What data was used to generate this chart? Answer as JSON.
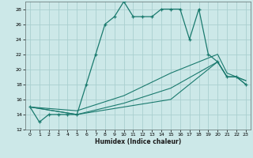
{
  "title": "",
  "xlabel": "Humidex (Indice chaleur)",
  "xlim": [
    -0.5,
    23.5
  ],
  "ylim": [
    12,
    29
  ],
  "yticks": [
    12,
    14,
    16,
    18,
    20,
    22,
    24,
    26,
    28
  ],
  "xticks": [
    0,
    1,
    2,
    3,
    4,
    5,
    6,
    7,
    8,
    9,
    10,
    11,
    12,
    13,
    14,
    15,
    16,
    17,
    18,
    19,
    20,
    21,
    22,
    23
  ],
  "background_color": "#cce8e8",
  "grid_color": "#aacfcf",
  "line_color": "#1a7a6e",
  "line1_x": [
    0,
    1,
    2,
    3,
    4,
    5,
    6,
    7,
    8,
    9,
    10,
    11,
    12,
    13,
    14,
    15,
    16,
    17,
    18,
    19,
    20,
    21,
    22,
    23
  ],
  "line1_y": [
    15,
    13,
    14,
    14,
    14,
    14,
    18,
    22,
    26,
    27,
    29,
    27,
    27,
    27,
    28,
    28,
    28,
    24,
    28,
    22,
    21,
    19,
    19,
    18
  ],
  "line2_x": [
    0,
    5,
    10,
    15,
    20,
    21,
    22,
    23
  ],
  "line2_y": [
    15,
    14,
    15,
    16,
    21,
    19,
    19,
    18
  ],
  "line3_x": [
    0,
    5,
    10,
    15,
    20,
    21,
    22,
    23
  ],
  "line3_y": [
    15,
    14,
    15.5,
    17.5,
    21,
    19,
    19,
    18.5
  ],
  "line4_x": [
    0,
    5,
    10,
    15,
    20,
    21,
    22,
    23
  ],
  "line4_y": [
    15,
    14.5,
    16.5,
    19.5,
    22,
    19.5,
    19,
    18.5
  ]
}
